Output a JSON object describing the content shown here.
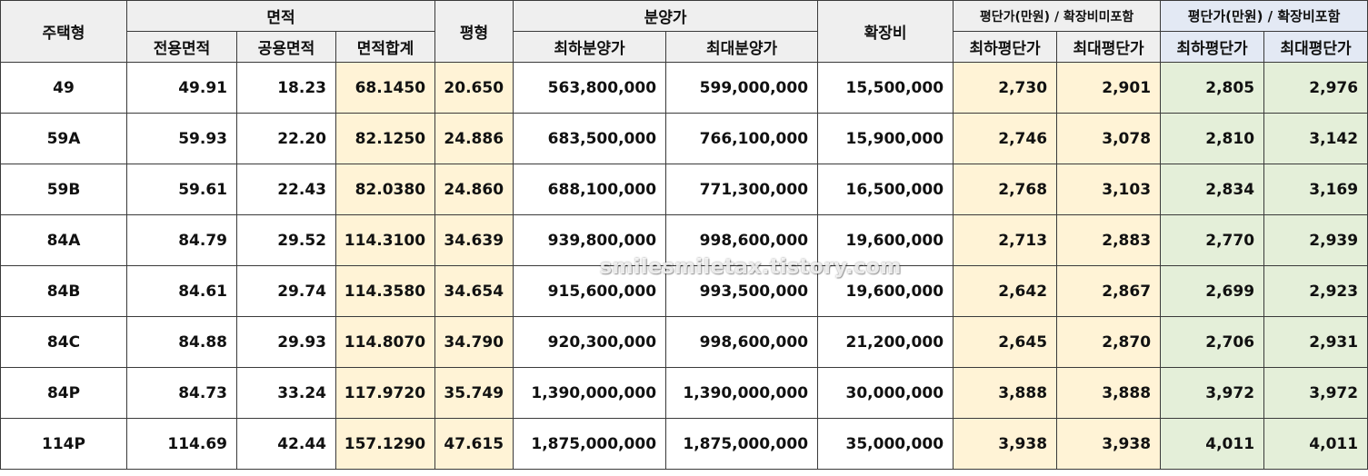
{
  "headers": {
    "type": "주택형",
    "area_group": "면적",
    "area_exclusive": "전용면적",
    "area_common": "공용면적",
    "area_total": "면적합계",
    "pyeong": "평형",
    "price_group": "분양가",
    "price_min": "최하분양가",
    "price_max": "최대분양가",
    "expansion": "확장비",
    "unit_excl_group": "평단가(만원) / 확장비미포함",
    "unit_excl_min": "최하평단가",
    "unit_excl_max": "최대평단가",
    "unit_incl_group": "평단가(만원) / 확장비포함",
    "unit_incl_min": "최하평단가",
    "unit_incl_max": "최대평단가"
  },
  "rows": [
    {
      "type": "49",
      "exclusive": "49.91",
      "common": "18.23",
      "total": "68.1450",
      "pyeong": "20.650",
      "price_min": "563,800,000",
      "price_max": "599,000,000",
      "expansion": "15,500,000",
      "ex_min": "2,730",
      "ex_max": "2,901",
      "in_min": "2,805",
      "in_max": "2,976"
    },
    {
      "type": "59A",
      "exclusive": "59.93",
      "common": "22.20",
      "total": "82.1250",
      "pyeong": "24.886",
      "price_min": "683,500,000",
      "price_max": "766,100,000",
      "expansion": "15,900,000",
      "ex_min": "2,746",
      "ex_max": "3,078",
      "in_min": "2,810",
      "in_max": "3,142"
    },
    {
      "type": "59B",
      "exclusive": "59.61",
      "common": "22.43",
      "total": "82.0380",
      "pyeong": "24.860",
      "price_min": "688,100,000",
      "price_max": "771,300,000",
      "expansion": "16,500,000",
      "ex_min": "2,768",
      "ex_max": "3,103",
      "in_min": "2,834",
      "in_max": "3,169"
    },
    {
      "type": "84A",
      "exclusive": "84.79",
      "common": "29.52",
      "total": "114.3100",
      "pyeong": "34.639",
      "price_min": "939,800,000",
      "price_max": "998,600,000",
      "expansion": "19,600,000",
      "ex_min": "2,713",
      "ex_max": "2,883",
      "in_min": "2,770",
      "in_max": "2,939"
    },
    {
      "type": "84B",
      "exclusive": "84.61",
      "common": "29.74",
      "total": "114.3580",
      "pyeong": "34.654",
      "price_min": "915,600,000",
      "price_max": "993,500,000",
      "expansion": "19,600,000",
      "ex_min": "2,642",
      "ex_max": "2,867",
      "in_min": "2,699",
      "in_max": "2,923"
    },
    {
      "type": "84C",
      "exclusive": "84.88",
      "common": "29.93",
      "total": "114.8070",
      "pyeong": "34.790",
      "price_min": "920,300,000",
      "price_max": "998,600,000",
      "expansion": "21,200,000",
      "ex_min": "2,645",
      "ex_max": "2,870",
      "in_min": "2,706",
      "in_max": "2,931"
    },
    {
      "type": "84P",
      "exclusive": "84.73",
      "common": "33.24",
      "total": "117.9720",
      "pyeong": "35.749",
      "price_min": "1,390,000,000",
      "price_max": "1,390,000,000",
      "expansion": "30,000,000",
      "ex_min": "3,888",
      "ex_max": "3,888",
      "in_min": "3,972",
      "in_max": "3,972"
    },
    {
      "type": "114P",
      "exclusive": "114.69",
      "common": "42.44",
      "total": "157.1290",
      "pyeong": "47.615",
      "price_min": "1,875,000,000",
      "price_max": "1,875,000,000",
      "expansion": "35,000,000",
      "ex_min": "3,938",
      "ex_max": "3,938",
      "in_min": "4,011",
      "in_max": "4,011"
    }
  ],
  "watermark": "smilesmiletax.tistory.com"
}
